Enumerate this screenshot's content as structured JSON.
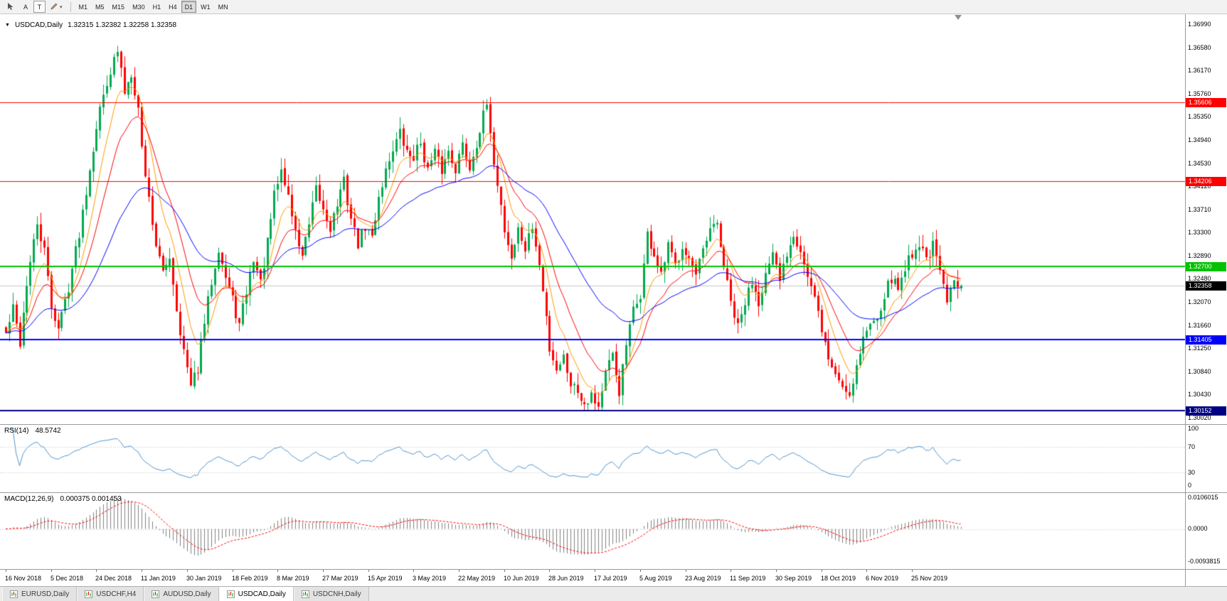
{
  "toolbar": {
    "tools": [
      {
        "id": "cursor-tool"
      },
      {
        "id": "text-label-tool",
        "label": "A"
      },
      {
        "id": "text-tool",
        "label": "T"
      },
      {
        "id": "draw-tool"
      }
    ],
    "timeframes": [
      "M1",
      "M5",
      "M15",
      "M30",
      "H1",
      "H4",
      "D1",
      "W1",
      "MN"
    ],
    "active_timeframe": "D1"
  },
  "panels": {
    "main": {
      "symbol": "USDCAD,Daily",
      "ohlc": "1.32315 1.32382 1.32258 1.32358"
    },
    "rsi": {
      "name": "RSI(14)",
      "value": "48.5742"
    },
    "macd": {
      "name": "MACD(12,26,9)",
      "value": "0.000375 0.001453"
    }
  },
  "tabs": {
    "items": [
      {
        "label": "EURUSD,Daily",
        "active": false
      },
      {
        "label": "USDCHF,H4",
        "active": false
      },
      {
        "label": "AUDUSD,Daily",
        "active": false
      },
      {
        "label": "USDCAD,Daily",
        "active": true
      },
      {
        "label": "USDCNH,Daily",
        "active": false
      }
    ]
  },
  "chart_data": {
    "type": "candlestick",
    "symbol": "USDCAD",
    "timeframe": "Daily",
    "candle_count": 275,
    "up_color": "#00A94F",
    "down_color": "#FF0000",
    "last_ohlc": {
      "open": 1.32315,
      "high": 1.32382,
      "low": 1.32258,
      "close": 1.32358
    },
    "y_axis": {
      "top": 1.3699,
      "bottom": 1.3002,
      "labels": [
        "1.36990",
        "1.36580",
        "1.36170",
        "1.35760",
        "1.35350",
        "1.34940",
        "1.34530",
        "1.34120",
        "1.33710",
        "1.33300",
        "1.32890",
        "1.32480",
        "1.32070",
        "1.31660",
        "1.31250",
        "1.30840",
        "1.30430",
        "1.30020"
      ]
    },
    "x_labels": [
      "16 Nov 2018",
      "5 Dec 2018",
      "24 Dec 2018",
      "11 Jan 2019",
      "30 Jan 2019",
      "18 Feb 2019",
      "8 Mar 2019",
      "27 Mar 2019",
      "15 Apr 2019",
      "3 May 2019",
      "22 May 2019",
      "10 Jun 2019",
      "28 Jun 2019",
      "17 Jul 2019",
      "5 Aug 2019",
      "23 Aug 2019",
      "11 Sep 2019",
      "30 Sep 2019",
      "18 Oct 2019",
      "6 Nov 2019",
      "25 Nov 2019"
    ],
    "label_step": 13,
    "horizontal_levels": [
      {
        "price": 1.35606,
        "label": "1.35606",
        "color": "#FF0000",
        "width": 1
      },
      {
        "price": 1.34206,
        "label": "1.34206",
        "color": "#FF0000",
        "width": 1
      },
      {
        "price": 1.327,
        "label": "1.32700",
        "color": "#00C200",
        "width": 2
      },
      {
        "price": 1.31405,
        "label": "1.31405",
        "color": "#0000FF",
        "width": 2
      },
      {
        "price": 1.30152,
        "label": "1.30152",
        "color": "#000080",
        "width": 2
      }
    ],
    "bid_line": {
      "price": 1.32358,
      "label": "1.32358",
      "line_color": "#c4c4c4",
      "badge_color": "#000000"
    },
    "moving_averages": [
      {
        "period": 8,
        "color": "#FF9900"
      },
      {
        "period": 16,
        "color": "#FF0000"
      },
      {
        "period": 42,
        "color": "#0000FF"
      }
    ],
    "rsi": {
      "period": 14,
      "current": 48.5742,
      "color": "#4F94CD",
      "levels": [
        70,
        30
      ],
      "axis_labels": [
        "100",
        "70",
        "30",
        "0"
      ],
      "range": [
        0,
        100
      ]
    },
    "macd": {
      "fast": 12,
      "slow": 26,
      "signal": 9,
      "macd_current": 0.000375,
      "signal_current": 0.001453,
      "histogram_color": "#808080",
      "signal_color": "#FF0000",
      "axis_labels": [
        "0.0106015",
        "0.0000",
        "-0.0093815"
      ]
    },
    "close_waypoints": [
      [
        0,
        1.315
      ],
      [
        2,
        1.3195
      ],
      [
        4,
        1.3135
      ],
      [
        6,
        1.324
      ],
      [
        9,
        1.3345
      ],
      [
        11,
        1.3295
      ],
      [
        13,
        1.32
      ],
      [
        15,
        1.316
      ],
      [
        18,
        1.3235
      ],
      [
        21,
        1.333
      ],
      [
        24,
        1.3445
      ],
      [
        26,
        1.352
      ],
      [
        29,
        1.36
      ],
      [
        32,
        1.365
      ],
      [
        34,
        1.358
      ],
      [
        36,
        1.3615
      ],
      [
        38,
        1.355
      ],
      [
        39,
        1.348
      ],
      [
        41,
        1.339
      ],
      [
        43,
        1.331
      ],
      [
        45,
        1.3255
      ],
      [
        47,
        1.329
      ],
      [
        49,
        1.3195
      ],
      [
        51,
        1.312
      ],
      [
        53,
        1.3055
      ],
      [
        55,
        1.309
      ],
      [
        57,
        1.317
      ],
      [
        59,
        1.3245
      ],
      [
        61,
        1.3305
      ],
      [
        63,
        1.325
      ],
      [
        65,
        1.321
      ],
      [
        67,
        1.3165
      ],
      [
        69,
        1.3225
      ],
      [
        71,
        1.3285
      ],
      [
        73,
        1.324
      ],
      [
        75,
        1.331
      ],
      [
        77,
        1.3395
      ],
      [
        79,
        1.344
      ],
      [
        81,
        1.3395
      ],
      [
        83,
        1.333
      ],
      [
        85,
        1.329
      ],
      [
        87,
        1.334
      ],
      [
        89,
        1.3405
      ],
      [
        91,
        1.337
      ],
      [
        93,
        1.334
      ],
      [
        95,
        1.338
      ],
      [
        97,
        1.342
      ],
      [
        99,
        1.3355
      ],
      [
        101,
        1.331
      ],
      [
        103,
        1.334
      ],
      [
        105,
        1.332
      ],
      [
        107,
        1.3395
      ],
      [
        109,
        1.344
      ],
      [
        111,
        1.348
      ],
      [
        113,
        1.3505
      ],
      [
        115,
        1.347
      ],
      [
        117,
        1.3465
      ],
      [
        119,
        1.349
      ],
      [
        121,
        1.344
      ],
      [
        123,
        1.347
      ],
      [
        125,
        1.344
      ],
      [
        127,
        1.3475
      ],
      [
        129,
        1.3445
      ],
      [
        131,
        1.3485
      ],
      [
        133,
        1.3445
      ],
      [
        135,
        1.349
      ],
      [
        137,
        1.3535
      ],
      [
        138,
        1.3555
      ],
      [
        139,
        1.3495
      ],
      [
        141,
        1.342
      ],
      [
        143,
        1.3335
      ],
      [
        145,
        1.3285
      ],
      [
        147,
        1.3335
      ],
      [
        149,
        1.33
      ],
      [
        151,
        1.334
      ],
      [
        153,
        1.327
      ],
      [
        155,
        1.318
      ],
      [
        156,
        1.3125
      ],
      [
        158,
        1.309
      ],
      [
        160,
        1.311
      ],
      [
        162,
        1.3065
      ],
      [
        164,
        1.305
      ],
      [
        166,
        1.303
      ],
      [
        168,
        1.3045
      ],
      [
        170,
        1.3022
      ],
      [
        172,
        1.308
      ],
      [
        174,
        1.311
      ],
      [
        176,
        1.3048
      ],
      [
        178,
        1.313
      ],
      [
        180,
        1.319
      ],
      [
        182,
        1.322
      ],
      [
        184,
        1.3325
      ],
      [
        186,
        1.329
      ],
      [
        188,
        1.325
      ],
      [
        190,
        1.3305
      ],
      [
        192,
        1.327
      ],
      [
        194,
        1.331
      ],
      [
        196,
        1.3285
      ],
      [
        198,
        1.325
      ],
      [
        200,
        1.3295
      ],
      [
        202,
        1.333
      ],
      [
        204,
        1.3345
      ],
      [
        206,
        1.327
      ],
      [
        208,
        1.3205
      ],
      [
        210,
        1.316
      ],
      [
        212,
        1.3205
      ],
      [
        214,
        1.3245
      ],
      [
        216,
        1.321
      ],
      [
        218,
        1.3255
      ],
      [
        220,
        1.3285
      ],
      [
        222,
        1.3245
      ],
      [
        224,
        1.3295
      ],
      [
        226,
        1.333
      ],
      [
        228,
        1.33
      ],
      [
        230,
        1.325
      ],
      [
        232,
        1.321
      ],
      [
        234,
        1.316
      ],
      [
        236,
        1.3105
      ],
      [
        238,
        1.308
      ],
      [
        240,
        1.3058
      ],
      [
        242,
        1.3045
      ],
      [
        244,
        1.3095
      ],
      [
        246,
        1.3145
      ],
      [
        248,
        1.3165
      ],
      [
        250,
        1.3185
      ],
      [
        252,
        1.322
      ],
      [
        254,
        1.325
      ],
      [
        256,
        1.323
      ],
      [
        258,
        1.327
      ],
      [
        260,
        1.3295
      ],
      [
        262,
        1.331
      ],
      [
        264,
        1.3285
      ],
      [
        266,
        1.3305
      ],
      [
        268,
        1.326
      ],
      [
        270,
        1.3205
      ],
      [
        272,
        1.3245
      ],
      [
        274,
        1.32358
      ]
    ]
  }
}
